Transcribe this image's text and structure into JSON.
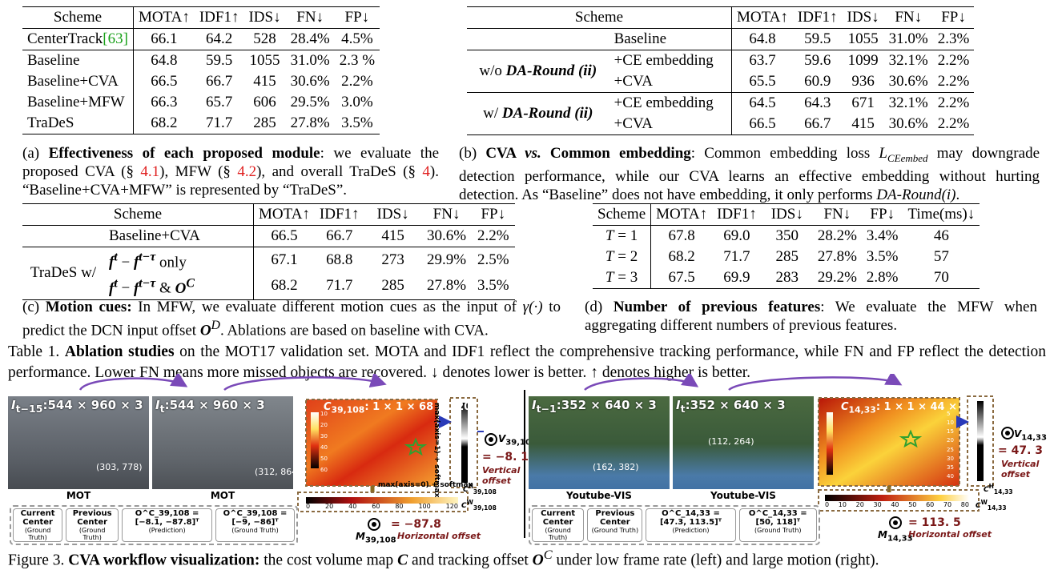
{
  "table_a": {
    "headers": [
      "Scheme",
      "MOTA↑",
      "IDF1↑",
      "IDS↓",
      "FN↓",
      "FP↓"
    ],
    "rows": [
      {
        "scheme": "CenterTrack",
        "ref": "[63]",
        "vals": [
          "66.1",
          "64.2",
          "528",
          "28.4%",
          "4.5%"
        ]
      },
      {
        "scheme": "Baseline",
        "vals": [
          "64.8",
          "59.5",
          "1055",
          "31.0%",
          "2.3 %"
        ]
      },
      {
        "scheme": "Baseline+CVA",
        "vals": [
          "66.5",
          "66.7",
          "415",
          "30.6%",
          "2.2%"
        ]
      },
      {
        "scheme": "Baseline+MFW",
        "vals": [
          "66.3",
          "65.7",
          "606",
          "29.5%",
          "3.0%"
        ]
      },
      {
        "scheme": "TraDeS",
        "vals": [
          "68.2",
          "71.7",
          "285",
          "27.8%",
          "3.5%"
        ]
      }
    ],
    "caption": {
      "label": "(a)",
      "bold": "Effectiveness of each proposed module",
      "t1": ": we evaluate the proposed CVA (§ ",
      "r1": "4.1",
      "t2": "), MFW (§ ",
      "r2": "4.2",
      "t3": "), and overall TraDeS (§ ",
      "r3": "4",
      "t4": "). “Baseline+CVA+MFW” is represented by “TraDeS”."
    }
  },
  "table_b": {
    "headers": [
      "Scheme",
      "",
      "MOTA↑",
      "IDF1↑",
      "IDS↓",
      "FN↓",
      "FP↓"
    ],
    "baseline": {
      "name": "Baseline",
      "vals": [
        "64.8",
        "59.5",
        "1055",
        "31.0%",
        "2.3%"
      ]
    },
    "group1": {
      "prefix": "w/o",
      "label": "DA-Round (ii)",
      "rows": [
        {
          "name": "+CE embedding",
          "vals": [
            "63.7",
            "59.6",
            "1099",
            "32.1%",
            "2.2%"
          ]
        },
        {
          "name": "+CVA",
          "vals": [
            "65.5",
            "60.9",
            "936",
            "30.6%",
            "2.2%"
          ]
        }
      ]
    },
    "group2": {
      "prefix": "w/",
      "label": "DA-Round (ii)",
      "rows": [
        {
          "name": "+CE embedding",
          "vals": [
            "64.5",
            "64.3",
            "671",
            "32.1%",
            "2.2%"
          ]
        },
        {
          "name": "+CVA",
          "vals": [
            "66.5",
            "66.7",
            "415",
            "30.6%",
            "2.2%"
          ]
        }
      ]
    },
    "caption": {
      "label": "(b)",
      "bold1": "CVA ",
      "vs": "vs.",
      "bold2": " Common embedding",
      "t1": ": Common embedding loss ",
      "loss": "L",
      "loss_sub": "CEembed",
      "t2": " may downgrade detection performance, while our CVA learns an effective embedding without hurting detection. As “Baseline” does not have embedding, it only performs ",
      "ital": "DA-Round(i)",
      "t3": "."
    }
  },
  "table_c": {
    "headers": [
      "Scheme",
      "",
      "MOTA↑",
      "IDF1↑",
      "IDS↓",
      "FN↓",
      "FP↓"
    ],
    "first": {
      "name": "Baseline+CVA",
      "vals": [
        "66.5",
        "66.7",
        "415",
        "30.6%",
        "2.2%"
      ]
    },
    "group_label": "TraDeS w/",
    "r1": {
      "a": "f",
      "sup_a": "t",
      "op": " − ",
      "b": "f",
      "sup_b": "t−τ",
      "tail": " only",
      "vals": [
        "67.1",
        "68.8",
        "273",
        "29.9%",
        "2.5%"
      ]
    },
    "r2": {
      "a": "f",
      "sup_a": "t",
      "op": " − ",
      "b": "f",
      "sup_b": "t−τ",
      "amp": " & ",
      "o": "O",
      "sup_o": "C",
      "vals": [
        "68.2",
        "71.7",
        "285",
        "27.8%",
        "3.5%"
      ]
    },
    "caption": {
      "label": "(c)",
      "bold": "Motion cues:",
      "t1": " In MFW, we evaluate different motion cues as the input of ",
      "gamma": "γ(·)",
      "t2": " to predict the DCN input offset ",
      "o": "O",
      "o_sup": "D",
      "t3": ". Ablations are based on baseline with CVA."
    }
  },
  "table_d": {
    "headers": [
      "Scheme",
      "MOTA↑",
      "IDF1↑",
      "IDS↓",
      "FN↓",
      "FP↓",
      "Time(ms)↓"
    ],
    "rows": [
      {
        "t": "T",
        "n": " = 1",
        "vals": [
          "67.8",
          "69.0",
          "350",
          "28.2%",
          "3.4%",
          "46"
        ]
      },
      {
        "t": "T",
        "n": " = 2",
        "vals": [
          "68.2",
          "71.7",
          "285",
          "27.8%",
          "3.5%",
          "57"
        ]
      },
      {
        "t": "T",
        "n": " = 3",
        "vals": [
          "67.5",
          "69.9",
          "283",
          "29.2%",
          "2.8%",
          "70"
        ]
      }
    ],
    "caption": {
      "label": "(d)",
      "bold": "Number of previous features",
      "t1": ": We evaluate the MFW when aggregating different numbers of previous features."
    }
  },
  "table_caption": {
    "prefix": "Table 1. ",
    "bold": "Ablation studies",
    "text": " on the MOT17 validation set. MOTA and IDF1 reflect the comprehensive tracking performance, while FN and FP reflect the detection performance. Lower FN means more missed objects are recovered. ↓ denotes lower is better. ↑ denotes higher is better."
  },
  "figure": {
    "left": {
      "frame1_label": "I",
      "frame1_sub": "t−15",
      "frame1_dims": ":544 × 960 × 3",
      "frame2_label": "I",
      "frame2_sub": "t",
      "frame2_dims": ":544 × 960 × 3",
      "frame_bottom": "MOT",
      "pt1": "(303, 778)",
      "pt2": "(312, 864)",
      "cost_label": "C",
      "cost_sub": "39,108",
      "cost_dims": ": 1 × 1 × 68 × 120",
      "maxpool_v": "max(axis=1) + softmax",
      "maxpool_h": "max(axis=0) + softmax",
      "v_label": "V",
      "v_sub": "39,108",
      "v_val": "= −8. 1",
      "v_text": "Vertical offset",
      "ch_label": "C",
      "ch_sub": "39,108",
      "ch_sup": "H",
      "cw_label": "C",
      "cw_sub": "39,108",
      "cw_sup": "W",
      "m_label": "M",
      "m_sub": "39,108",
      "h_val": "= −87.8",
      "h_text": "Horizontal offset",
      "legend": [
        {
          "title": "Current Center",
          "sub": "(Ground Truth)"
        },
        {
          "title": "Previous Center",
          "sub": "(Ground Truth)"
        },
        {
          "title": "O^C_39,108 = [−8.1, −87.8]ᵀ",
          "sub": "(Prediction)"
        },
        {
          "title": "O^C_39,108 = [−9, −86]ᵀ",
          "sub": "(Ground Truth)"
        }
      ],
      "h_ticks": [
        "0",
        "20",
        "40",
        "60",
        "80",
        "100",
        "120"
      ],
      "v_ticks": [
        "10",
        "20",
        "30",
        "40",
        "50",
        "60"
      ]
    },
    "right": {
      "frame1_label": "I",
      "frame1_sub": "t−1",
      "frame1_dims": ":352 × 640 × 3",
      "frame2_label": "I",
      "frame2_sub": "t",
      "frame2_dims": ":352 × 640 × 3",
      "frame_bottom": "Youtube-VIS",
      "pt1": "(162, 382)",
      "pt2": "(112, 264)",
      "cost_label": "C",
      "cost_sub": "14,33",
      "cost_dims": ": 1 × 1 × 44 × 80",
      "v_label": "V",
      "v_sub": "14,33",
      "v_val": "= 47. 3",
      "v_text": "Vertical offset",
      "ch_label": "C",
      "ch_sub": "14,33",
      "ch_sup": "H",
      "cw_label": "C",
      "cw_sub": "14,33",
      "cw_sup": "W",
      "m_label": "M",
      "m_sub": "14,33",
      "h_val": "= 113. 5",
      "h_text": "Horizontal offset",
      "legend": [
        {
          "title": "Current Center",
          "sub": "(Ground Truth)"
        },
        {
          "title": "Previous Center",
          "sub": "(Ground Truth)"
        },
        {
          "title": "O^C_14,33 = [47.3, 113.5]ᵀ",
          "sub": "(Prediction)"
        },
        {
          "title": "O^C_14,33 = [50, 118]ᵀ",
          "sub": "(Ground Truth)"
        }
      ],
      "h_ticks": [
        "0",
        "10",
        "20",
        "30",
        "40",
        "50",
        "60",
        "70",
        "80"
      ],
      "v_ticks": [
        "5",
        "10",
        "15",
        "20",
        "25",
        "30",
        "35",
        "40"
      ]
    }
  },
  "figure_caption": {
    "prefix": "Figure 3. ",
    "bold": "CVA workflow visualization:",
    "t1": " the cost volume map ",
    "c": "C",
    "t2": " and tracking offset ",
    "o": "O",
    "o_sup": "C",
    "t3": " under low frame rate (left) and large motion (right)."
  }
}
